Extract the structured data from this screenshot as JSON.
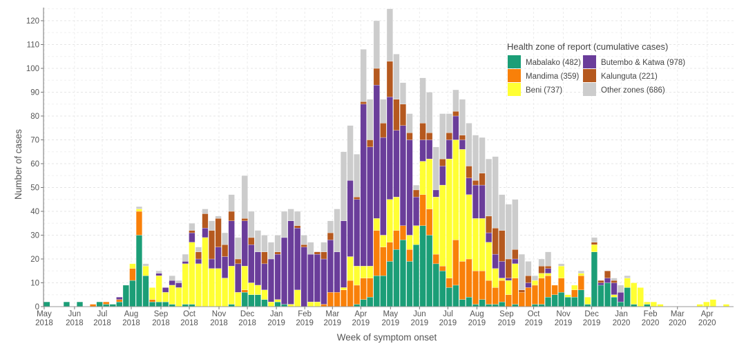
{
  "chart_data": {
    "type": "bar",
    "stacked": true,
    "xlabel": "Week of symptom onset",
    "ylabel": "Number of cases",
    "ylim": [
      0,
      125.5
    ],
    "y_ticks": [
      0,
      10,
      20,
      30,
      40,
      50,
      60,
      70,
      80,
      90,
      100,
      110,
      120
    ],
    "x_ticks": [
      {
        "month": "May",
        "year": "2018",
        "week": 0.1
      },
      {
        "month": "Jun",
        "year": "2018",
        "week": 4.7
      },
      {
        "month": "Jul",
        "year": "2018",
        "week": 8.9
      },
      {
        "month": "Aug",
        "year": "2018",
        "week": 13.3
      },
      {
        "month": "Sep",
        "year": "2018",
        "week": 17.8
      },
      {
        "month": "Oct",
        "year": "2018",
        "week": 22.1
      },
      {
        "month": "Nov",
        "year": "2018",
        "week": 26.6
      },
      {
        "month": "Dec",
        "year": "2018",
        "week": 30.9
      },
      {
        "month": "Jan",
        "year": "2019",
        "week": 35.3
      },
      {
        "month": "Feb",
        "year": "2019",
        "week": 39.6
      },
      {
        "month": "Mar",
        "year": "2019",
        "week": 43.8
      },
      {
        "month": "Apr",
        "year": "2019",
        "week": 48.1
      },
      {
        "month": "May",
        "year": "2019",
        "week": 52.6
      },
      {
        "month": "Jun",
        "year": "2019",
        "week": 57.0
      },
      {
        "month": "Jul",
        "year": "2019",
        "week": 61.3
      },
      {
        "month": "Aug",
        "year": "2019",
        "week": 65.7
      },
      {
        "month": "Sep",
        "year": "2019",
        "week": 70.2
      },
      {
        "month": "Oct",
        "year": "2019",
        "week": 74.3
      },
      {
        "month": "Nov",
        "year": "2019",
        "week": 78.8
      },
      {
        "month": "Dec",
        "year": "2019",
        "week": 83.1
      },
      {
        "month": "Jan",
        "year": "2020",
        "week": 87.6
      },
      {
        "month": "Feb",
        "year": "2020",
        "week": 92.0
      },
      {
        "month": "Mar",
        "year": "2020",
        "week": 96.1
      },
      {
        "month": "Apr",
        "year": "2020",
        "week": 100.6
      }
    ],
    "legend": {
      "title": "Health zone of report (cumulative cases)",
      "position": "top-right"
    },
    "series": [
      {
        "name": "Mabalako (482)",
        "color": "#1b9e77"
      },
      {
        "name": "Mandima (359)",
        "color": "#f98009"
      },
      {
        "name": "Beni (737)",
        "color": "#ffff33"
      },
      {
        "name": "Butembo & Katwa (978)",
        "color": "#6a3d9a"
      },
      {
        "name": "Kalunguta (221)",
        "color": "#b5591f"
      },
      {
        "name": "Other zones (686)",
        "color": "#cccccc"
      }
    ],
    "weekly_values_note": "each row = one week, values in series order",
    "weekly_values": [
      [
        2,
        0,
        0,
        0,
        0,
        0
      ],
      [
        0,
        0,
        0,
        0,
        0,
        0
      ],
      [
        0,
        0,
        0,
        0,
        0,
        0
      ],
      [
        2,
        0,
        0,
        0,
        0,
        0
      ],
      [
        0,
        0,
        0,
        0,
        0,
        0
      ],
      [
        2,
        0,
        0,
        0,
        0,
        0
      ],
      [
        0,
        0,
        0,
        0,
        0,
        0
      ],
      [
        0,
        1,
        0,
        0,
        0,
        0
      ],
      [
        2,
        0,
        0,
        0,
        0,
        0
      ],
      [
        1,
        1,
        0,
        0,
        0,
        0
      ],
      [
        1,
        0,
        0,
        0,
        0,
        0
      ],
      [
        2,
        1,
        0,
        1,
        0,
        0
      ],
      [
        9,
        0,
        0,
        0,
        0,
        0
      ],
      [
        11,
        5,
        2,
        0,
        0,
        0
      ],
      [
        30,
        10,
        1,
        0,
        0,
        1
      ],
      [
        13,
        0,
        4,
        0,
        0,
        1
      ],
      [
        2,
        1,
        5,
        0,
        0,
        0
      ],
      [
        2,
        0,
        11,
        1,
        0,
        1
      ],
      [
        2,
        0,
        4,
        2,
        0,
        0
      ],
      [
        1,
        0,
        8,
        2,
        0,
        2
      ],
      [
        0,
        0,
        8,
        2,
        0,
        1
      ],
      [
        1,
        0,
        17,
        1,
        0,
        3
      ],
      [
        1,
        0,
        26,
        4,
        1,
        3
      ],
      [
        0,
        0,
        18,
        2,
        3,
        2
      ],
      [
        0,
        0,
        29,
        4,
        6,
        2
      ],
      [
        0,
        0,
        16,
        4,
        12,
        4
      ],
      [
        0,
        0,
        16,
        9,
        12,
        1
      ],
      [
        0,
        0,
        12,
        9,
        5,
        5
      ],
      [
        1,
        0,
        16,
        19,
        4,
        7
      ],
      [
        0,
        0,
        6,
        12,
        2,
        9
      ],
      [
        6,
        1,
        10,
        19,
        1,
        18
      ],
      [
        5,
        0,
        5,
        16,
        3,
        11
      ],
      [
        5,
        0,
        4,
        14,
        0,
        9
      ],
      [
        3,
        0,
        4,
        11,
        5,
        7
      ],
      [
        0,
        0,
        2,
        18,
        0,
        7
      ],
      [
        2,
        0,
        1,
        19,
        1,
        7
      ],
      [
        1,
        0,
        0,
        28,
        0,
        11
      ],
      [
        0,
        0,
        1,
        35,
        0,
        5
      ],
      [
        0,
        0,
        7,
        26,
        1,
        6
      ],
      [
        0,
        0,
        0,
        25,
        1,
        4
      ],
      [
        0,
        0,
        2,
        20,
        0,
        5
      ],
      [
        0,
        0,
        2,
        20,
        1,
        0
      ],
      [
        0,
        1,
        0,
        19,
        3,
        4
      ],
      [
        0,
        6,
        0,
        22,
        3,
        5
      ],
      [
        0,
        6,
        0,
        17,
        0,
        18
      ],
      [
        0,
        7,
        1,
        28,
        0,
        29
      ],
      [
        0,
        11,
        10,
        32,
        0,
        23
      ],
      [
        1,
        8,
        8,
        28,
        1,
        18
      ],
      [
        3,
        9,
        5,
        68,
        1,
        22
      ],
      [
        4,
        8,
        5,
        50,
        3,
        17
      ],
      [
        13,
        19,
        5,
        56,
        7,
        20
      ],
      [
        13,
        12,
        5,
        41,
        6,
        10
      ],
      [
        19,
        8,
        18,
        43,
        15,
        22
      ],
      [
        24,
        8,
        14,
        28,
        13,
        19
      ],
      [
        28,
        6,
        0,
        42,
        9,
        9
      ],
      [
        19,
        5,
        6,
        40,
        3,
        8
      ],
      [
        26,
        0,
        8,
        12,
        3,
        2
      ],
      [
        34,
        13,
        14,
        9,
        7,
        19
      ],
      [
        30,
        11,
        21,
        8,
        3,
        17
      ],
      [
        18,
        4,
        24,
        3,
        0,
        18
      ],
      [
        15,
        2,
        34,
        8,
        3,
        19
      ],
      [
        8,
        4,
        50,
        8,
        3,
        8
      ],
      [
        9,
        19,
        42,
        10,
        2,
        9
      ],
      [
        3,
        16,
        47,
        4,
        2,
        15
      ],
      [
        4,
        16,
        27,
        7,
        5,
        18
      ],
      [
        1,
        14,
        22,
        14,
        2,
        19
      ],
      [
        3,
        12,
        22,
        14,
        5,
        15
      ],
      [
        1,
        10,
        16,
        4,
        7,
        24
      ],
      [
        1,
        7,
        8,
        6,
        11,
        30
      ],
      [
        2,
        9,
        1,
        7,
        13,
        15
      ],
      [
        0,
        5,
        6,
        1,
        8,
        23
      ],
      [
        1,
        11,
        6,
        2,
        4,
        21
      ],
      [
        0,
        6,
        0,
        0,
        1,
        15
      ],
      [
        0,
        8,
        0,
        2,
        3,
        6
      ],
      [
        1,
        8,
        2,
        0,
        0,
        2
      ],
      [
        1,
        11,
        2,
        0,
        3,
        3
      ],
      [
        4,
        9,
        1,
        2,
        1,
        6
      ],
      [
        5,
        4,
        0,
        0,
        0,
        0
      ],
      [
        6,
        6,
        5,
        0,
        0,
        1
      ],
      [
        4,
        0,
        1,
        0,
        0,
        0
      ],
      [
        4,
        3,
        2,
        0,
        0,
        0
      ],
      [
        7,
        6,
        1,
        0,
        0,
        1
      ],
      [
        1,
        0,
        3,
        0,
        0,
        0
      ],
      [
        23,
        0,
        3,
        0,
        1,
        2
      ],
      [
        9,
        0,
        0,
        1,
        1,
        0
      ],
      [
        10,
        0,
        0,
        2,
        3,
        0
      ],
      [
        4,
        0,
        1,
        5,
        1,
        1
      ],
      [
        2,
        0,
        0,
        4,
        0,
        3
      ],
      [
        8,
        0,
        4,
        0,
        0,
        1
      ],
      [
        1,
        0,
        9,
        0,
        0,
        0
      ],
      [
        0,
        0,
        8,
        0,
        0,
        0
      ],
      [
        1,
        0,
        1,
        0,
        0,
        0
      ],
      [
        0,
        0,
        2,
        0,
        0,
        0
      ],
      [
        0,
        0,
        1,
        0,
        0,
        0
      ],
      [
        0,
        0,
        0,
        0,
        0,
        0
      ],
      [
        0,
        0,
        0,
        0,
        0,
        0
      ],
      [
        0,
        0,
        0,
        0,
        0,
        0
      ],
      [
        0,
        0,
        0,
        0,
        0,
        0
      ],
      [
        0,
        0,
        0,
        0,
        0,
        0
      ],
      [
        0,
        0,
        1,
        0,
        0,
        0
      ],
      [
        0,
        0,
        2,
        0,
        0,
        0
      ],
      [
        0,
        0,
        3,
        0,
        0,
        0
      ],
      [
        0,
        0,
        0,
        0,
        0,
        0
      ],
      [
        0,
        0,
        1,
        0,
        0,
        0
      ]
    ]
  }
}
